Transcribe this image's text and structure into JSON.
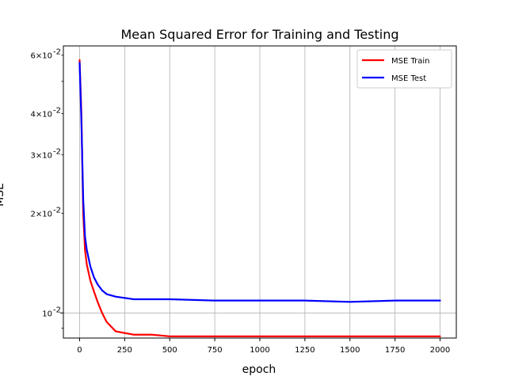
{
  "chart_data": {
    "type": "line",
    "title": "Mean Squared Error for Training and Testing",
    "xlabel": "epoch",
    "ylabel": "MSE",
    "xlim": [
      -90,
      2090
    ],
    "ylim": [
      0.0084,
      0.064
    ],
    "yscale": "log",
    "grid": "x-major and y-major",
    "legend_position": "top-right",
    "x_ticks": [
      0,
      250,
      500,
      750,
      1000,
      1250,
      1500,
      1750,
      2000
    ],
    "x_tick_labels": [
      "0",
      "250",
      "500",
      "750",
      "1000",
      "1250",
      "1500",
      "1750",
      "2000"
    ],
    "y_major_ticks": [
      0.01
    ],
    "y_minor_ticks": [
      0.009,
      0.02,
      0.03,
      0.04,
      0.05,
      0.06
    ],
    "y_tick_labels": [
      {
        "value": 0.01,
        "label": "10^-2"
      },
      {
        "value": 0.02,
        "label": "2×10^-2"
      },
      {
        "value": 0.03,
        "label": "3×10^-2"
      },
      {
        "value": 0.04,
        "label": "4×10^-2"
      },
      {
        "value": 0.06,
        "label": "6×10^-2"
      }
    ],
    "series": [
      {
        "name": "MSE Train",
        "color": "#ff0000",
        "x": [
          0,
          10,
          20,
          30,
          40,
          60,
          80,
          100,
          125,
          150,
          200,
          250,
          300,
          400,
          500,
          750,
          1000,
          1250,
          1500,
          1750,
          2000
        ],
        "y": [
          0.058,
          0.04,
          0.02,
          0.0155,
          0.014,
          0.0125,
          0.0116,
          0.0108,
          0.01,
          0.0094,
          0.0088,
          0.0087,
          0.0086,
          0.0086,
          0.0085,
          0.0085,
          0.0085,
          0.0085,
          0.0085,
          0.0085,
          0.0085
        ]
      },
      {
        "name": "MSE Test",
        "color": "#0000ff",
        "x": [
          0,
          10,
          20,
          30,
          40,
          60,
          80,
          100,
          125,
          150,
          200,
          250,
          300,
          400,
          500,
          750,
          1000,
          1250,
          1500,
          1750,
          2000
        ],
        "y": [
          0.057,
          0.038,
          0.022,
          0.017,
          0.0155,
          0.0138,
          0.0128,
          0.0122,
          0.0117,
          0.0114,
          0.0112,
          0.0111,
          0.011,
          0.011,
          0.011,
          0.0109,
          0.0109,
          0.0109,
          0.0108,
          0.0109,
          0.0109
        ]
      }
    ]
  }
}
